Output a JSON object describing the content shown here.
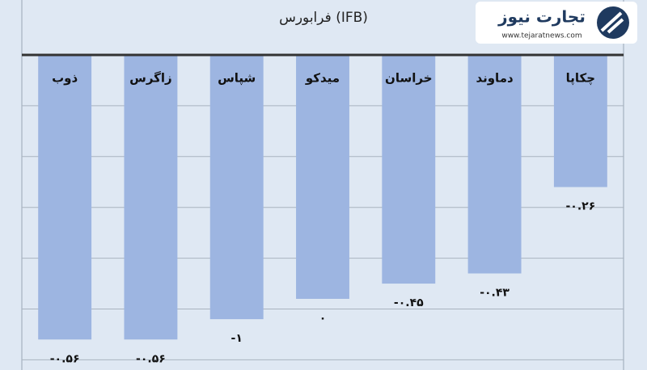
{
  "chart_data": {
    "type": "bar",
    "title": "فرابورس (IFB)",
    "brand": "تجارت نیوز",
    "brand_url": "www.tejaratnews.com",
    "categories": [
      "ذوب",
      "زاگرس",
      "شپاس",
      "میدکو",
      "خراسان",
      "دماوند",
      "چکاپا"
    ],
    "values": [
      -0.56,
      -0.56,
      -0.52,
      -0.48,
      -0.45,
      -0.43,
      -0.26
    ],
    "value_labels": [
      "-۰.۵۶",
      "-۰.۵۶",
      "-۱",
      "۰",
      "-۰.۴۵",
      "-۰.۴۳",
      "-۰.۲۶"
    ],
    "color": "#9db5e1",
    "ylim": [
      -0.62,
      0
    ],
    "yticks": [
      0,
      -0.1,
      -0.2,
      -0.3,
      -0.4,
      -0.5,
      -0.6
    ],
    "grid": true
  }
}
